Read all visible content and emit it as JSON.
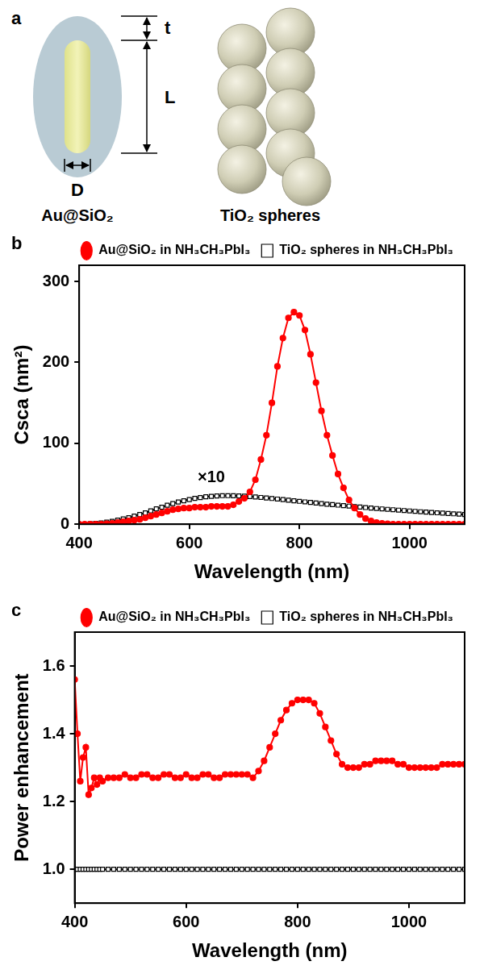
{
  "diagram": {
    "panel": "a",
    "items": [
      {
        "caption": "Au@SiO₂",
        "dimensions": [
          "t",
          "L",
          "D"
        ]
      },
      {
        "caption": "TiO₂ spheres"
      }
    ]
  },
  "chart_data": [
    {
      "type": "line",
      "panel": "b",
      "xlabel": "Wavelength (nm)",
      "ylabel": "Csca (nm²)",
      "xlim": [
        400,
        1100
      ],
      "xticks": [
        400,
        600,
        800,
        1000
      ],
      "ylim": [
        0,
        320
      ],
      "yticks": [
        0,
        100,
        200,
        300
      ],
      "grid": false,
      "legend": "top",
      "annotations": [
        {
          "text": "×10",
          "x": 640,
          "y": 48
        }
      ],
      "x": [
        400,
        410,
        420,
        430,
        440,
        450,
        460,
        470,
        480,
        490,
        500,
        510,
        520,
        530,
        540,
        550,
        560,
        570,
        580,
        590,
        600,
        610,
        620,
        630,
        640,
        650,
        660,
        670,
        680,
        690,
        700,
        710,
        720,
        730,
        740,
        750,
        760,
        770,
        780,
        790,
        800,
        810,
        820,
        830,
        840,
        850,
        860,
        870,
        880,
        890,
        900,
        910,
        920,
        930,
        940,
        950,
        960,
        970,
        980,
        990,
        1000,
        1010,
        1020,
        1030,
        1040,
        1050,
        1060,
        1070,
        1080,
        1090,
        1100
      ],
      "series": [
        {
          "name": "Au@SiO₂ in NH₃CH₃PbI₃",
          "color": "#ff0000",
          "marker": "circle",
          "line_style": "solid",
          "values": [
            0,
            0,
            0,
            0,
            0,
            0.5,
            1,
            2,
            3,
            4,
            5,
            6,
            8,
            10,
            12,
            14,
            16,
            18,
            19,
            20,
            20,
            21,
            21,
            21,
            22,
            22,
            22,
            22,
            24,
            28,
            32,
            40,
            55,
            80,
            110,
            150,
            195,
            230,
            255,
            262,
            258,
            240,
            210,
            175,
            140,
            110,
            85,
            62,
            45,
            30,
            20,
            12,
            7,
            4,
            2,
            1,
            0.5,
            0,
            0,
            0,
            0,
            0,
            0,
            0,
            0,
            0,
            0,
            0,
            0,
            0,
            0
          ]
        },
        {
          "name": "TiO₂ spheres in NH₃CH₃PbI₃",
          "color": "#000000",
          "marker": "open-square",
          "line_style": "solid",
          "values": [
            0,
            0,
            0.5,
            1,
            1.5,
            2.5,
            3.5,
            5,
            6.5,
            8,
            10,
            12,
            14,
            16.5,
            19,
            21,
            23.5,
            25.5,
            27.5,
            29,
            30.5,
            32,
            33,
            34,
            34.5,
            35,
            35.3,
            35.3,
            35.2,
            35,
            34.7,
            34.2,
            33.7,
            33.1,
            32.5,
            31.8,
            31.1,
            30.4,
            29.7,
            29,
            28.3,
            27.6,
            26.9,
            26.2,
            25.5,
            24.8,
            24.2,
            23.6,
            23,
            22.4,
            21.8,
            21.2,
            20.6,
            20,
            19.4,
            18.9,
            18.4,
            17.9,
            17.4,
            16.9,
            16.4,
            15.9,
            15.4,
            15,
            14.5,
            14.1,
            13.7,
            13.3,
            12.9,
            12.5,
            12
          ]
        }
      ]
    },
    {
      "type": "line",
      "panel": "c",
      "xlabel": "Wavelength (nm)",
      "ylabel": "Power enhancement",
      "xlim": [
        400,
        1100
      ],
      "xticks": [
        400,
        600,
        800,
        1000
      ],
      "ylim": [
        0.9,
        1.7
      ],
      "yticks": [
        {
          "value": 1,
          "label": "1.0"
        },
        1.2,
        1.4,
        1.6
      ],
      "grid": false,
      "legend": "top",
      "x": [
        400,
        405,
        410,
        415,
        420,
        425,
        430,
        435,
        440,
        445,
        450,
        460,
        470,
        480,
        490,
        500,
        510,
        520,
        530,
        540,
        550,
        560,
        570,
        580,
        590,
        600,
        610,
        620,
        630,
        640,
        650,
        660,
        670,
        680,
        690,
        700,
        710,
        720,
        730,
        740,
        750,
        760,
        770,
        780,
        790,
        800,
        810,
        820,
        830,
        840,
        850,
        860,
        870,
        880,
        890,
        900,
        910,
        920,
        930,
        940,
        950,
        960,
        970,
        980,
        990,
        1000,
        1010,
        1020,
        1030,
        1040,
        1050,
        1060,
        1070,
        1080,
        1090,
        1100
      ],
      "series": [
        {
          "name": "Au@SiO₂ in NH₃CH₃PbI₃",
          "color": "#ff0000",
          "marker": "circle",
          "line_style": "solid",
          "values": [
            1.56,
            1.4,
            1.26,
            1.33,
            1.36,
            1.22,
            1.24,
            1.27,
            1.25,
            1.27,
            1.26,
            1.27,
            1.27,
            1.27,
            1.28,
            1.27,
            1.27,
            1.28,
            1.28,
            1.27,
            1.27,
            1.28,
            1.28,
            1.27,
            1.27,
            1.28,
            1.27,
            1.27,
            1.28,
            1.28,
            1.27,
            1.27,
            1.28,
            1.28,
            1.28,
            1.28,
            1.28,
            1.27,
            1.29,
            1.32,
            1.36,
            1.4,
            1.44,
            1.47,
            1.49,
            1.5,
            1.5,
            1.5,
            1.49,
            1.46,
            1.42,
            1.38,
            1.34,
            1.31,
            1.3,
            1.3,
            1.3,
            1.31,
            1.31,
            1.32,
            1.32,
            1.32,
            1.32,
            1.31,
            1.31,
            1.3,
            1.3,
            1.3,
            1.3,
            1.3,
            1.3,
            1.31,
            1.31,
            1.31,
            1.31,
            1.31
          ]
        },
        {
          "name": "TiO₂ spheres in NH₃CH₃PbI₃",
          "color": "#000000",
          "marker": "open-square",
          "line_style": "solid",
          "values": [
            1,
            1,
            1,
            1,
            1,
            1,
            1,
            1,
            1,
            1,
            1,
            1,
            1,
            1,
            1,
            1,
            1,
            1,
            1,
            1,
            1,
            1,
            1,
            1,
            1,
            1,
            1,
            1,
            1,
            1,
            1,
            1,
            1,
            1,
            1,
            1,
            1,
            1,
            1,
            1,
            1,
            1,
            1,
            1,
            1,
            1,
            1,
            1,
            1,
            1,
            1,
            1,
            1,
            1,
            1,
            1,
            1,
            1,
            1,
            1,
            1,
            1,
            1,
            1,
            1,
            1,
            1,
            1,
            1,
            1,
            1,
            1,
            1,
            1,
            1,
            1
          ]
        }
      ]
    }
  ]
}
